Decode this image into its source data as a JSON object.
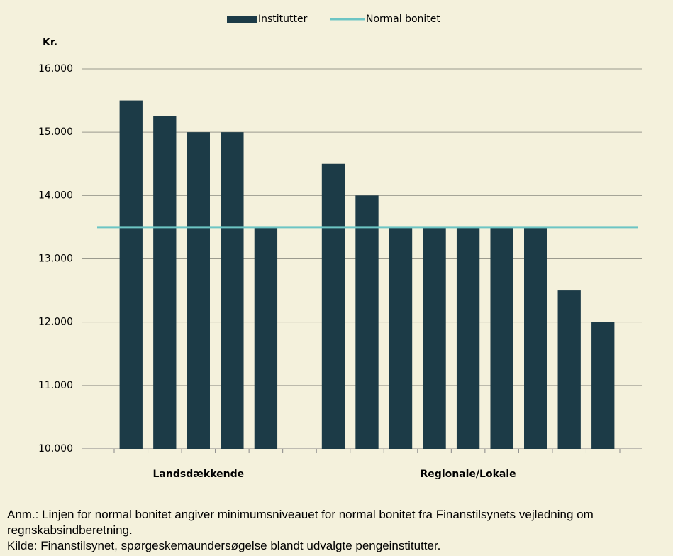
{
  "chart_data": {
    "type": "bar",
    "y_label": "Kr.",
    "categories": [
      null,
      null,
      null,
      null,
      null,
      null,
      null,
      null,
      null,
      null,
      null,
      null,
      null,
      null,
      null
    ],
    "groups": [
      "Landsdækkende",
      "Regionale/Lokale"
    ],
    "series": [
      {
        "name": "Institutter",
        "type": "bar",
        "color": "#1c3b47",
        "values": [
          15500,
          15250,
          15000,
          15000,
          13500,
          null,
          14500,
          14000,
          13500,
          13500,
          13500,
          13500,
          13500,
          12500,
          12000
        ]
      },
      {
        "name": "Normal bonitet",
        "type": "line",
        "color": "#6cc5c4",
        "values": [
          13500,
          13500,
          13500,
          13500,
          13500,
          13500,
          13500,
          13500,
          13500,
          13500,
          13500,
          13500,
          13500,
          13500,
          13500
        ]
      }
    ],
    "ylim": [
      10000,
      16000
    ],
    "yticks": [
      {
        "value": 10000,
        "label": "10.000"
      },
      {
        "value": 11000,
        "label": "11.000"
      },
      {
        "value": 12000,
        "label": "12.000"
      },
      {
        "value": 13000,
        "label": "13.000"
      },
      {
        "value": 14000,
        "label": "14.000"
      },
      {
        "value": 15000,
        "label": "15.000"
      },
      {
        "value": 16000,
        "label": "16.000"
      }
    ],
    "grid": true,
    "legend": "top"
  },
  "notes": [
    "Anm.: Linjen for normal bonitet angiver minimumsniveauet for normal bonitet fra Finanstilsynets vejledning om regnskabsindberetning.",
    "Kilde: Finanstilsynet, spørgeskemaundersøgelse blandt udvalgte pengeinstitutter."
  ]
}
